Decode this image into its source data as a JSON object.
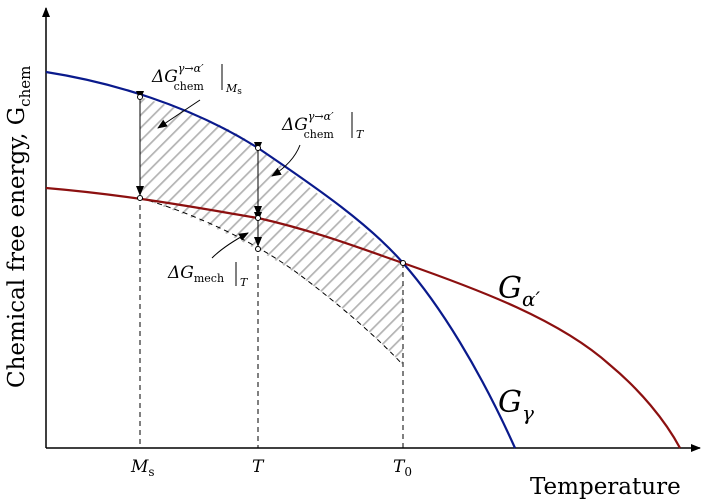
{
  "axes": {
    "y_label": "Chemical free energy, G",
    "y_label_sub": "chem",
    "x_label": "Temperature"
  },
  "ticks": {
    "ms_main": "M",
    "ms_sub": "s",
    "t": "T",
    "t0_main": "T",
    "t0_sub": "0"
  },
  "curves": {
    "alpha_main": "G",
    "alpha_sub": "α′",
    "gamma_main": "G",
    "gamma_sub": "γ"
  },
  "annotations": {
    "chem_ms": {
      "delta": "ΔG",
      "sup": "γ→α′",
      "sub": "chem",
      "bar_sub": "M",
      "bar_subsub": "s"
    },
    "chem_t": {
      "delta": "ΔG",
      "sup": "γ→α′",
      "sub": "chem",
      "bar_sub": "T"
    },
    "mech_t": {
      "delta": "ΔG",
      "sub": "mech",
      "bar_sub": "T"
    }
  },
  "colors": {
    "gamma_curve": "#0a1a8c",
    "alpha_curve": "#8c1010",
    "hatch": "#b4b4b4",
    "axis": "#000000"
  }
}
